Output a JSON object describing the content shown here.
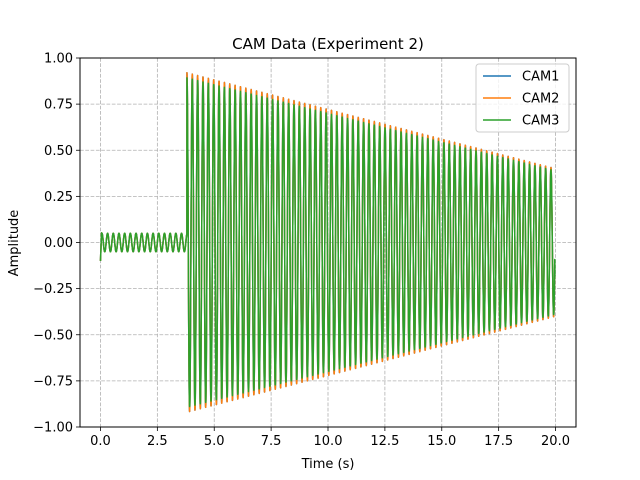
{
  "chart_data": {
    "type": "line",
    "title": "CAM Data (Experiment 2)",
    "xlabel": "Time (s)",
    "ylabel": "Amplitude",
    "xlim": [
      -0.9,
      20.9
    ],
    "ylim": [
      -1.0,
      1.0
    ],
    "xticks": [
      0.0,
      2.5,
      5.0,
      7.5,
      10.0,
      12.5,
      15.0,
      17.5,
      20.0
    ],
    "xtick_labels": [
      "0.0",
      "2.5",
      "5.0",
      "7.5",
      "10.0",
      "12.5",
      "15.0",
      "17.5",
      "20.0"
    ],
    "yticks": [
      -1.0,
      -0.75,
      -0.5,
      -0.25,
      0.0,
      0.25,
      0.5,
      0.75,
      1.0
    ],
    "ytick_labels": [
      "−1.00",
      "−0.75",
      "−0.50",
      "−0.25",
      "0.00",
      "0.25",
      "0.50",
      "0.75",
      "1.00"
    ],
    "grid": true,
    "legend_position": "top-right",
    "signal": {
      "t_start": 0.0,
      "t_end": 20.0,
      "pre_segment_end": 3.8,
      "pre_amplitude": 0.05,
      "pre_frequency_hz": 4.0,
      "main_frequency_hz": 4.25,
      "main_envelope": [
        [
          3.8,
          0.92
        ],
        [
          20.0,
          0.4
        ]
      ],
      "start_spike_min": -0.1,
      "end_value": -0.18
    },
    "series": [
      {
        "name": "CAM1",
        "color": "#1f77b4",
        "amplitude_scale": 1.0
      },
      {
        "name": "CAM2",
        "color": "#ff7f0e",
        "amplitude_scale": 1.0
      },
      {
        "name": "CAM3",
        "color": "#2ca02c",
        "amplitude_scale": 0.97
      }
    ]
  }
}
